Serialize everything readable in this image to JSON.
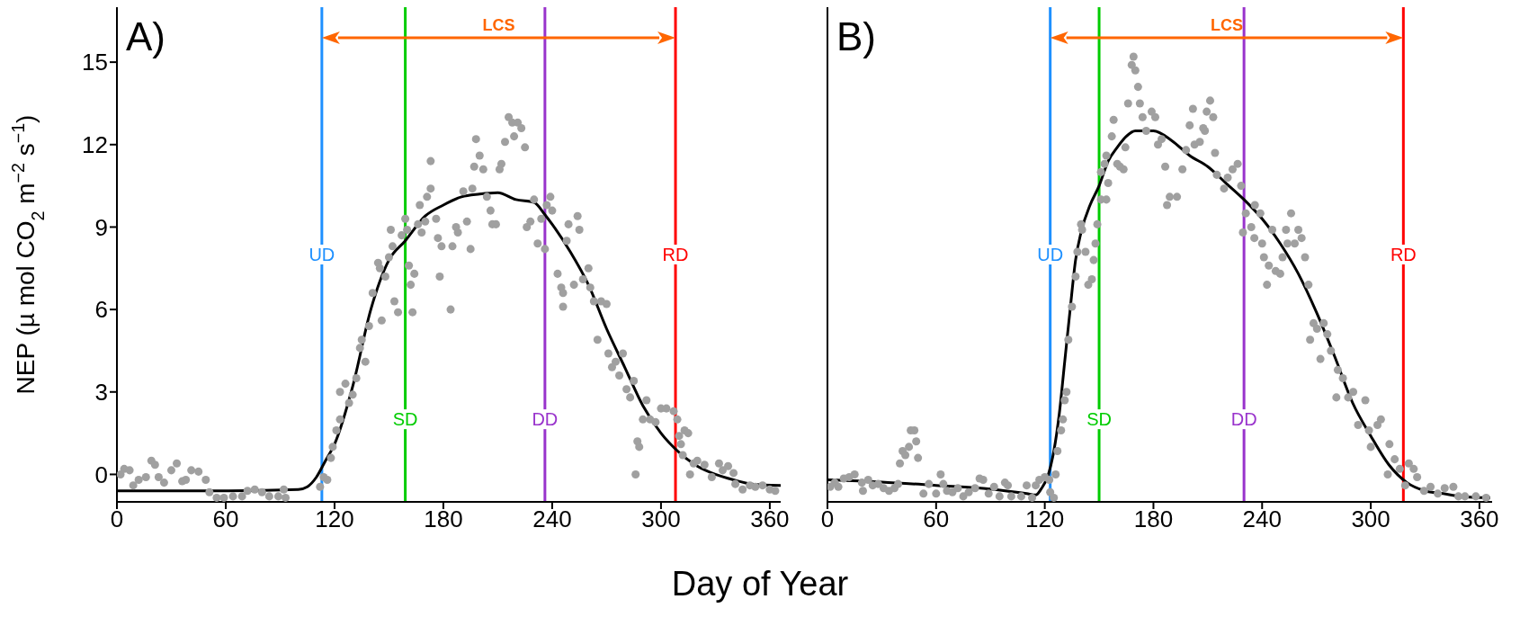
{
  "chart_data": [
    {
      "type": "scatter",
      "title": "A)",
      "xlabel": "Day of Year",
      "ylabel": "NEP (µ mol CO$_{2}$ m$^{−2}$ s$^{−1}$)",
      "xlim": [
        0,
        366
      ],
      "ylim": [
        -1,
        17
      ],
      "xticks": [
        0,
        60,
        120,
        180,
        240,
        300,
        360
      ],
      "yticks": [
        0,
        3,
        6,
        9,
        12,
        15
      ],
      "series": [
        {
          "color": "#a0a0a0",
          "x": [
            2,
            4,
            7,
            9,
            12,
            16,
            19,
            21,
            23,
            26,
            30,
            33,
            36,
            38,
            41,
            45,
            49,
            51,
            55,
            59,
            64,
            69,
            72,
            76,
            80,
            84,
            89,
            92,
            93,
            112,
            114,
            116,
            118,
            119,
            121,
            123,
            123,
            126,
            128,
            130,
            132,
            134,
            135,
            137,
            139,
            141,
            144,
            146,
            145,
            148,
            150,
            151,
            152,
            153,
            155,
            157,
            159,
            160,
            161,
            162,
            163,
            164,
            166,
            167,
            168,
            170,
            171,
            173,
            173,
            176,
            177,
            178,
            179,
            184,
            185,
            187,
            188,
            191,
            193,
            195,
            196,
            197,
            198,
            200,
            202,
            204,
            206,
            207,
            209,
            211,
            212,
            214,
            216,
            218,
            219,
            221,
            223,
            225,
            226,
            228,
            230,
            232,
            234,
            236,
            237,
            239,
            240,
            243,
            245,
            246,
            246,
            248,
            249,
            252,
            254,
            255,
            257,
            260,
            261,
            263,
            265,
            267,
            270,
            271,
            273,
            275,
            277,
            279,
            281,
            283,
            285,
            286,
            287,
            288,
            290,
            292,
            294,
            297,
            300,
            303,
            307,
            309,
            310,
            311,
            313,
            315,
            312,
            316,
            318,
            320,
            324,
            328,
            332,
            334,
            337,
            340,
            341,
            345,
            349,
            352,
            356,
            360,
            363
          ],
          "values": [
            0,
            0.2,
            0.15,
            -0.4,
            -0.2,
            -0.1,
            0.5,
            0.35,
            -0.1,
            -0.3,
            0.15,
            0.4,
            -0.25,
            -0.2,
            0.15,
            0.1,
            -0.2,
            -0.65,
            -0.85,
            -0.85,
            -0.8,
            -0.8,
            -0.6,
            -0.55,
            -0.65,
            -0.8,
            -0.8,
            -0.55,
            -0.85,
            -0.45,
            -0.1,
            -0.2,
            0.6,
            1,
            1.6,
            2,
            3,
            3.3,
            2.6,
            2.9,
            3.5,
            4.6,
            4.9,
            4.1,
            5.4,
            6.6,
            7.7,
            5.6,
            7.5,
            7.2,
            7.9,
            8.9,
            8.3,
            6.3,
            5.9,
            8.7,
            9.3,
            8.9,
            7.6,
            6.9,
            5.9,
            7.3,
            9.1,
            9.8,
            8.8,
            9.2,
            10.1,
            10.4,
            11.4,
            9.3,
            8.6,
            7.2,
            8.3,
            6,
            8.3,
            9,
            8.8,
            10.3,
            9.2,
            8.2,
            10.4,
            11.2,
            12.2,
            11.6,
            11.1,
            10.1,
            9.6,
            9.1,
            9.1,
            11.1,
            11.3,
            12.1,
            13,
            12.8,
            12.3,
            12.8,
            12.6,
            11.9,
            9,
            9.2,
            10,
            8.4,
            9.3,
            8.2,
            9.8,
            10.1,
            9.6,
            7.3,
            6.8,
            6.6,
            6.1,
            8.5,
            9.1,
            6.9,
            9.4,
            8.9,
            7.1,
            7.5,
            6.8,
            6.3,
            4.9,
            6.3,
            6.2,
            4.4,
            3.9,
            4.1,
            3.6,
            4.4,
            3.1,
            2.8,
            3.4,
            0,
            1.2,
            1,
            2,
            2.7,
            2,
            1.9,
            2.4,
            2.4,
            2.3,
            2,
            1.4,
            1.1,
            1.6,
            1.5,
            0.7,
            0,
            0.4,
            0.5,
            0.35,
            -0.1,
            0.4,
            0.15,
            0.3,
            0.05,
            -0.35,
            -0.55,
            -0.4,
            -0.45,
            -0.4,
            -0.55,
            -0.6
          ]
        },
        {
          "type": "line",
          "color": "#000000",
          "x": [
            0,
            60,
            100,
            105,
            110,
            115,
            120,
            130,
            140,
            150,
            159,
            170,
            180,
            190,
            200,
            210,
            220,
            230,
            236,
            240,
            250,
            260,
            270,
            280,
            290,
            300,
            310,
            320,
            330,
            340,
            350,
            366
          ],
          "values": [
            -0.6,
            -0.6,
            -0.55,
            -0.45,
            -0.1,
            0.5,
            1.1,
            3.2,
            6,
            7.8,
            8.5,
            9.4,
            9.8,
            10.1,
            10.2,
            10.25,
            10,
            9.9,
            9.45,
            9.1,
            8.1,
            6.9,
            5.3,
            3.9,
            2.5,
            1.5,
            0.8,
            0.3,
            0,
            -0.2,
            -0.35,
            -0.4
          ]
        }
      ],
      "ref_lines": [
        {
          "axis": "x",
          "value": 113,
          "label": "UD",
          "color": "#1e90ff"
        },
        {
          "axis": "x",
          "value": 159,
          "label": "SD",
          "color": "#00cc00"
        },
        {
          "axis": "x",
          "value": 236,
          "label": "DD",
          "color": "#9933cc"
        },
        {
          "axis": "x",
          "value": 308,
          "label": "RD",
          "color": "#ff0000"
        }
      ],
      "annotations": [
        "LCS"
      ]
    },
    {
      "type": "scatter",
      "title": "B)",
      "xlim": [
        0,
        367
      ],
      "ylim": [
        -1,
        17
      ],
      "xticks": [
        0,
        60,
        120,
        180,
        240,
        300,
        360
      ],
      "tick_labels": "x",
      "series": [
        {
          "color": "#a0a0a0",
          "x": [
            1.5,
            4,
            6,
            9,
            12,
            15,
            19,
            19.6,
            22.5,
            25,
            28,
            31,
            34,
            37,
            39,
            40,
            41.5,
            43,
            45,
            46,
            48,
            49,
            50,
            53,
            56,
            60,
            62.5,
            64,
            66,
            69,
            72,
            75,
            78,
            81.5,
            84,
            86,
            89,
            92,
            95,
            98,
            99.6,
            101.5,
            107,
            110,
            113,
            115,
            117,
            120,
            122.5,
            123,
            125,
            126,
            127,
            129,
            130,
            131,
            132,
            133,
            135,
            137,
            138,
            140,
            140.6,
            142.5,
            144,
            146,
            147,
            148,
            149,
            151,
            151,
            153,
            154,
            154,
            155,
            157,
            158,
            160,
            161.5,
            163.5,
            164.5,
            166,
            168,
            169,
            170,
            171.5,
            172.5,
            174,
            176,
            179,
            181,
            182.5,
            184.5,
            186.5,
            187.5,
            189,
            193,
            196,
            198,
            200,
            201.8,
            202.7,
            205.6,
            207.5,
            208.4,
            209.4,
            211.3,
            213,
            214,
            215,
            219,
            221,
            223.7,
            226.5,
            228.4,
            229.4,
            231,
            234,
            236,
            235.7,
            239,
            240,
            241,
            242.7,
            243.7,
            245.6,
            247.5,
            250,
            251.3,
            253.2,
            254,
            256,
            258,
            260,
            261.8,
            263.7,
            265.6,
            266.5,
            268.4,
            270.3,
            272.2,
            274,
            276,
            278,
            281.8,
            281,
            284.6,
            287.5,
            290.3,
            293,
            297,
            299,
            300,
            303.7,
            305.6,
            309.4,
            310.3,
            313.2,
            316,
            319,
            321,
            323.7,
            325.6,
            329.4,
            333,
            337,
            340.8,
            345.6,
            348.4,
            352,
            358,
            363.7
          ],
          "values": [
            -0.45,
            -0.3,
            -0.45,
            -0.15,
            -0.1,
            0,
            -0.3,
            -0.6,
            -0.2,
            -0.4,
            -0.35,
            -0.5,
            -0.6,
            -0.5,
            -0.35,
            0.4,
            0.85,
            0.7,
            1,
            1.6,
            1.6,
            1.2,
            0.6,
            -0.7,
            -0.35,
            -0.7,
            0,
            -0.35,
            -0.6,
            -0.65,
            -0.5,
            -0.8,
            -0.65,
            -0.5,
            -0.15,
            -0.2,
            -0.7,
            -0.45,
            -0.8,
            -0.3,
            -0.4,
            -0.8,
            -0.8,
            -0.4,
            -0.85,
            -0.4,
            -0.2,
            -0.1,
            -0.2,
            -0.65,
            -0.85,
            0,
            0.85,
            1.6,
            2,
            2.7,
            3,
            4.9,
            6.1,
            7.2,
            8.1,
            9.1,
            8.9,
            8.1,
            6.9,
            7.1,
            7.8,
            8.4,
            9.1,
            10,
            11,
            11.3,
            11.6,
            10,
            10.6,
            12.3,
            12.9,
            11.3,
            11.2,
            11.1,
            11.9,
            13.5,
            14.9,
            15.2,
            14.7,
            14.1,
            13.5,
            13,
            12.5,
            13.2,
            13,
            12,
            12.2,
            11.2,
            9.8,
            10.1,
            10.1,
            11.1,
            11.8,
            12.7,
            13.3,
            12,
            12.1,
            12.6,
            12.5,
            13.2,
            13.6,
            13,
            11.7,
            10.9,
            10.4,
            10.8,
            11.1,
            11.3,
            10.5,
            8.8,
            9.5,
            9,
            9.8,
            8.6,
            9.5,
            8.4,
            7.9,
            6.9,
            7.6,
            8.9,
            7.4,
            7.3,
            7.9,
            8.9,
            8.4,
            9.5,
            8.4,
            8.9,
            8.6,
            7.9,
            6.9,
            4.9,
            5.5,
            5.3,
            4.2,
            5.5,
            5.1,
            4.5,
            3.8,
            2.8,
            3.5,
            2.8,
            3,
            1.8,
            2.7,
            1.6,
            1,
            1.8,
            2,
            0,
            1.1,
            0.55,
            0.2,
            -0.4,
            0.4,
            0.2,
            -0.1,
            -0.6,
            -0.45,
            -0.7,
            -0.5,
            -0.45,
            -0.8,
            -0.8,
            -0.8,
            -0.85
          ]
        },
        {
          "type": "line",
          "color": "#000000",
          "x": [
            0,
            30,
            60,
            90,
            110,
            115,
            118,
            122,
            125,
            128,
            131,
            134,
            137,
            140,
            145,
            150,
            155,
            160,
            165,
            170,
            175,
            180,
            190,
            200,
            210,
            220,
            230,
            240,
            250,
            260,
            270,
            280,
            290,
            300,
            310,
            320,
            330,
            340,
            350,
            366
          ],
          "values": [
            -0.2,
            -0.28,
            -0.4,
            -0.53,
            -0.7,
            -0.75,
            -0.53,
            0,
            0.85,
            2.2,
            4.1,
            6,
            7.8,
            8.8,
            9.8,
            10.5,
            11.4,
            11.9,
            12.3,
            12.5,
            12.5,
            12.5,
            12.15,
            11.6,
            11.2,
            10.6,
            10,
            9.3,
            8.4,
            7.3,
            5.9,
            4.3,
            2.6,
            1.4,
            0.35,
            -0.3,
            -0.6,
            -0.7,
            -0.8,
            -0.85
          ]
        }
      ],
      "ref_lines": [
        {
          "axis": "x",
          "value": 123,
          "label": "UD",
          "color": "#1e90ff"
        },
        {
          "axis": "x",
          "value": 150,
          "label": "SD",
          "color": "#00cc00"
        },
        {
          "axis": "x",
          "value": 230,
          "label": "DD",
          "color": "#9933cc"
        },
        {
          "axis": "x",
          "value": 318,
          "label": "RD",
          "color": "#ff0000"
        }
      ],
      "annotations": [
        "LCS"
      ]
    }
  ]
}
